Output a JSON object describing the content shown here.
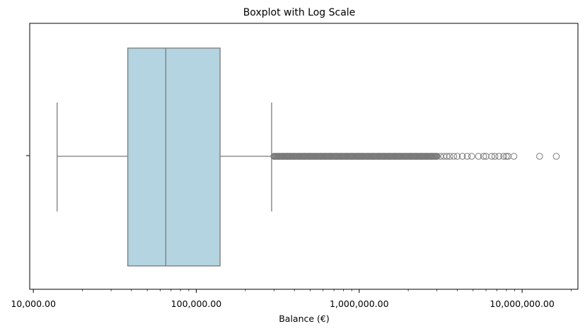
{
  "chart_data": {
    "type": "boxplot",
    "title": "Boxplot with Log Scale",
    "xlabel": "Balance (€)",
    "ylabel": "",
    "x_scale": "log",
    "xlim": [
      9500,
      22000000
    ],
    "xticks": [
      {
        "value": 10000,
        "label": "10,000.00"
      },
      {
        "value": 100000,
        "label": "100,000.00"
      },
      {
        "value": 1000000,
        "label": "1,000,000.00"
      },
      {
        "value": 10000000,
        "label": "10,000,000.00"
      }
    ],
    "orientation": "horizontal",
    "box": {
      "whisker_low": 14000,
      "q1": 38000,
      "median": 65000,
      "q3": 140000,
      "whisker_high": 290000,
      "fill_color": "#b3d4e0",
      "line_color": "#7a7a7a"
    },
    "outliers": [
      300000,
      320000,
      340000,
      360000,
      380000,
      400000,
      430000,
      460000,
      500000,
      540000,
      580000,
      620000,
      670000,
      720000,
      780000,
      840000,
      900000,
      970000,
      1050000,
      1130000,
      1220000,
      1320000,
      1420000,
      1530000,
      1650000,
      1780000,
      1920000,
      2070000,
      2230000,
      2400000,
      2580000,
      2780000,
      3000000,
      3150000,
      3300000,
      3450000,
      3600000,
      3800000,
      4000000,
      4300000,
      4600000,
      4900000,
      5400000,
      5800000,
      6000000,
      6500000,
      6800000,
      7200000,
      7700000,
      8000000,
      8200000,
      8900000,
      12800000,
      16200000
    ],
    "grid": false
  }
}
